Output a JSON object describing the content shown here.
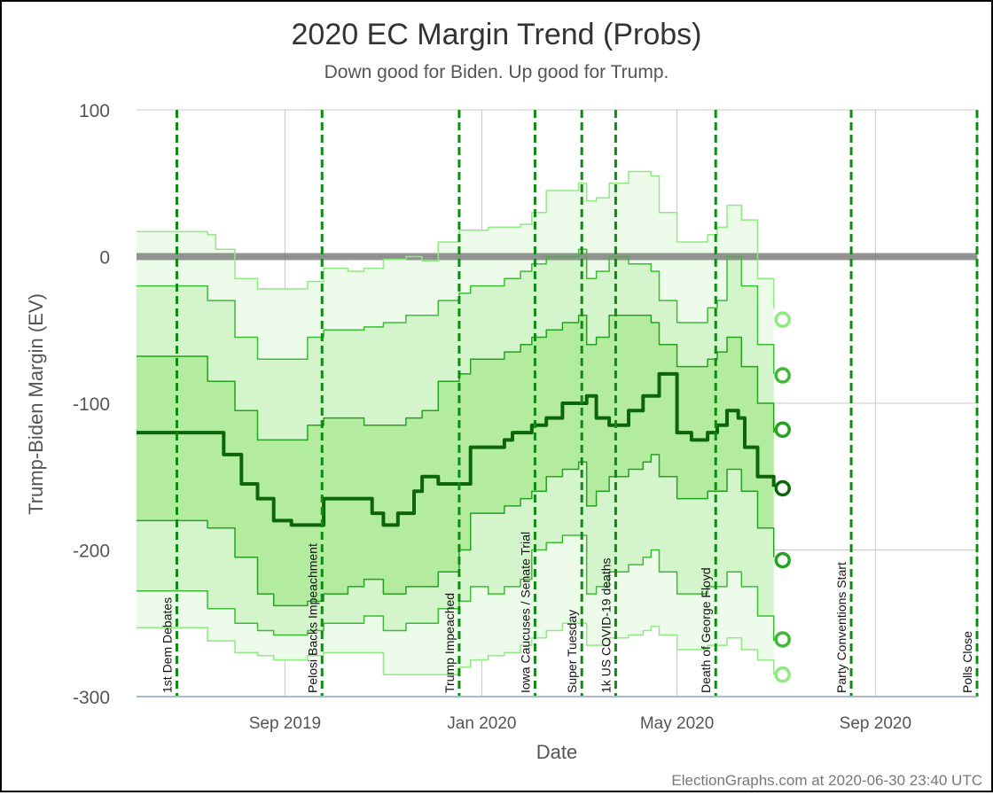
{
  "chart_data": {
    "type": "area",
    "title": "2020 EC Margin Trend (Probs)",
    "subtitle": "Down good for Biden. Up good for Trump.",
    "xlabel": "Date",
    "ylabel": "Trump-Biden Margin (EV)",
    "footer": "ElectionGraphs.com at 2020-06-30 23:40 UTC",
    "ylim": [
      -300,
      100
    ],
    "y_ticks": [
      {
        "value": 100,
        "label": "100"
      },
      {
        "value": 0,
        "label": "0"
      },
      {
        "value": -100,
        "label": "-100"
      },
      {
        "value": -200,
        "label": "-200"
      },
      {
        "value": -300,
        "label": "-300"
      }
    ],
    "xlim": [
      "2019-06-01",
      "2020-11-03"
    ],
    "x_ticks": [
      {
        "date": "2019-09-01",
        "label": "Sep 2019"
      },
      {
        "date": "2020-01-01",
        "label": "Jan 2020"
      },
      {
        "date": "2020-05-01",
        "label": "May 2020"
      },
      {
        "date": "2020-09-01",
        "label": "Sep 2020"
      }
    ],
    "grid": true,
    "zero_line": 0,
    "colors": {
      "band_outer": "#edfbea",
      "band_mid": "#d4f5cc",
      "band_inner": "#b3ec9e",
      "line_outer": "#90ea82",
      "line_mid": "#3dbb35",
      "line_inner": "#25a21f",
      "median": "#0c6608",
      "event_line": "#0f8a14",
      "zero_line": "#808080",
      "grid": "#c8c8c8"
    },
    "events": [
      {
        "date": "2019-06-26",
        "label": "1st Dem Debates"
      },
      {
        "date": "2019-09-24",
        "label": "Pelosi Backs Impeachment"
      },
      {
        "date": "2019-12-18",
        "label": "Trump Impeached"
      },
      {
        "date": "2020-02-03",
        "label": "Iowa Caucuses / Senate Trial"
      },
      {
        "date": "2020-03-03",
        "label": "Super Tuesday"
      },
      {
        "date": "2020-03-24",
        "label": "1k US COVID-19 deaths"
      },
      {
        "date": "2020-05-25",
        "label": "Death of George Floyd"
      },
      {
        "date": "2020-08-17",
        "label": "Party Conventions Start"
      },
      {
        "date": "2020-11-03",
        "label": "Polls Close"
      }
    ],
    "series": [
      {
        "key": "upper_outer",
        "x": [
          "2019-06-01",
          "2019-06-26",
          "2019-07-15",
          "2019-07-20",
          "2019-08-01",
          "2019-08-15",
          "2019-08-25",
          "2019-09-15",
          "2019-09-25",
          "2019-10-10",
          "2019-10-20",
          "2019-11-01",
          "2019-11-15",
          "2019-11-25",
          "2019-12-05",
          "2019-12-18",
          "2019-12-25",
          "2020-01-05",
          "2020-01-15",
          "2020-01-25",
          "2020-02-01",
          "2020-02-10",
          "2020-02-20",
          "2020-03-01",
          "2020-03-06",
          "2020-03-12",
          "2020-03-20",
          "2020-04-01",
          "2020-04-10",
          "2020-04-15",
          "2020-04-20",
          "2020-05-01",
          "2020-05-10",
          "2020-05-20",
          "2020-05-26",
          "2020-06-01",
          "2020-06-10",
          "2020-06-20",
          "2020-06-30"
        ],
        "values": [
          17,
          17,
          15,
          5,
          -15,
          -22,
          -22,
          -17,
          -8,
          -10,
          -8,
          -2,
          0,
          -3,
          10,
          18,
          18,
          20,
          20,
          22,
          30,
          45,
          45,
          50,
          38,
          40,
          50,
          58,
          58,
          55,
          30,
          10,
          10,
          15,
          20,
          35,
          25,
          -15,
          -35
        ]
      },
      {
        "key": "upper_mid",
        "x": [
          "2019-06-01",
          "2019-06-26",
          "2019-07-15",
          "2019-08-01",
          "2019-08-15",
          "2019-08-25",
          "2019-09-15",
          "2019-09-25",
          "2019-10-10",
          "2019-10-20",
          "2019-11-01",
          "2019-11-15",
          "2019-11-25",
          "2019-12-05",
          "2019-12-18",
          "2019-12-25",
          "2020-01-05",
          "2020-01-15",
          "2020-01-25",
          "2020-02-01",
          "2020-02-10",
          "2020-02-20",
          "2020-03-01",
          "2020-03-06",
          "2020-03-12",
          "2020-03-20",
          "2020-04-01",
          "2020-04-10",
          "2020-04-15",
          "2020-04-20",
          "2020-05-01",
          "2020-05-10",
          "2020-05-20",
          "2020-05-26",
          "2020-06-01",
          "2020-06-10",
          "2020-06-20",
          "2020-06-30"
        ],
        "values": [
          -20,
          -20,
          -30,
          -55,
          -70,
          -70,
          -55,
          -50,
          -50,
          -48,
          -45,
          -40,
          -40,
          -30,
          -25,
          -20,
          -20,
          -15,
          -10,
          -5,
          0,
          0,
          5,
          -15,
          -10,
          0,
          -5,
          -5,
          -10,
          -30,
          -45,
          -45,
          -35,
          -30,
          0,
          -20,
          -60,
          -80
        ]
      },
      {
        "key": "upper_inner",
        "x": [
          "2019-06-01",
          "2019-06-26",
          "2019-07-15",
          "2019-08-01",
          "2019-08-15",
          "2019-08-25",
          "2019-09-15",
          "2019-09-25",
          "2019-10-10",
          "2019-10-20",
          "2019-11-01",
          "2019-11-15",
          "2019-11-25",
          "2019-12-05",
          "2019-12-18",
          "2019-12-25",
          "2020-01-05",
          "2020-01-15",
          "2020-01-25",
          "2020-02-01",
          "2020-02-10",
          "2020-02-20",
          "2020-03-01",
          "2020-03-06",
          "2020-03-12",
          "2020-03-20",
          "2020-04-01",
          "2020-04-10",
          "2020-04-15",
          "2020-04-20",
          "2020-05-01",
          "2020-05-10",
          "2020-05-20",
          "2020-05-26",
          "2020-06-01",
          "2020-06-10",
          "2020-06-20",
          "2020-06-30"
        ],
        "values": [
          -68,
          -68,
          -85,
          -105,
          -125,
          -125,
          -115,
          -110,
          -110,
          -115,
          -115,
          -110,
          -105,
          -85,
          -80,
          -70,
          -70,
          -65,
          -60,
          -55,
          -50,
          -45,
          -40,
          -60,
          -55,
          -40,
          -40,
          -40,
          -45,
          -60,
          -75,
          -75,
          -70,
          -65,
          -55,
          -75,
          -100,
          -120
        ]
      },
      {
        "key": "median",
        "x": [
          "2019-06-01",
          "2019-06-26",
          "2019-07-15",
          "2019-07-25",
          "2019-08-05",
          "2019-08-15",
          "2019-08-25",
          "2019-09-05",
          "2019-09-15",
          "2019-09-25",
          "2019-10-10",
          "2019-10-18",
          "2019-10-25",
          "2019-11-01",
          "2019-11-10",
          "2019-11-20",
          "2019-11-25",
          "2019-12-05",
          "2019-12-15",
          "2019-12-25",
          "2020-01-05",
          "2020-01-15",
          "2020-01-20",
          "2020-02-01",
          "2020-02-10",
          "2020-02-20",
          "2020-03-01",
          "2020-03-06",
          "2020-03-12",
          "2020-03-20",
          "2020-04-01",
          "2020-04-10",
          "2020-04-15",
          "2020-04-20",
          "2020-05-01",
          "2020-05-10",
          "2020-05-15",
          "2020-05-20",
          "2020-05-26",
          "2020-06-01",
          "2020-06-08",
          "2020-06-12",
          "2020-06-20",
          "2020-06-30"
        ],
        "values": [
          -120,
          -120,
          -120,
          -135,
          -155,
          -165,
          -180,
          -183,
          -183,
          -165,
          -165,
          -165,
          -175,
          -183,
          -175,
          -160,
          -150,
          -155,
          -155,
          -130,
          -130,
          -125,
          -120,
          -115,
          -110,
          -100,
          -100,
          -95,
          -110,
          -115,
          -105,
          -95,
          -95,
          -80,
          -120,
          -125,
          -125,
          -120,
          -115,
          -105,
          -110,
          -130,
          -150,
          -157
        ]
      },
      {
        "key": "lower_inner",
        "x": [
          "2019-06-01",
          "2019-06-26",
          "2019-07-15",
          "2019-08-01",
          "2019-08-15",
          "2019-08-25",
          "2019-09-15",
          "2019-09-25",
          "2019-10-10",
          "2019-10-20",
          "2019-11-01",
          "2019-11-15",
          "2019-11-25",
          "2019-12-05",
          "2019-12-18",
          "2019-12-25",
          "2020-01-05",
          "2020-01-15",
          "2020-01-25",
          "2020-02-01",
          "2020-02-10",
          "2020-02-20",
          "2020-03-01",
          "2020-03-06",
          "2020-03-12",
          "2020-03-20",
          "2020-04-01",
          "2020-04-10",
          "2020-04-15",
          "2020-04-20",
          "2020-05-01",
          "2020-05-10",
          "2020-05-20",
          "2020-05-26",
          "2020-06-01",
          "2020-06-10",
          "2020-06-20",
          "2020-06-30"
        ],
        "values": [
          -180,
          -180,
          -185,
          -205,
          -230,
          -238,
          -235,
          -230,
          -225,
          -220,
          -230,
          -225,
          -225,
          -215,
          -200,
          -175,
          -175,
          -170,
          -165,
          -160,
          -150,
          -145,
          -140,
          -170,
          -160,
          -150,
          -145,
          -140,
          -135,
          -150,
          -165,
          -165,
          -160,
          -160,
          -145,
          -160,
          -185,
          -205
        ]
      },
      {
        "key": "lower_mid",
        "x": [
          "2019-06-01",
          "2019-06-26",
          "2019-07-15",
          "2019-08-01",
          "2019-08-15",
          "2019-08-25",
          "2019-09-15",
          "2019-09-25",
          "2019-10-10",
          "2019-10-20",
          "2019-11-01",
          "2019-11-15",
          "2019-11-25",
          "2019-12-05",
          "2019-12-18",
          "2019-12-25",
          "2020-01-05",
          "2020-01-15",
          "2020-01-25",
          "2020-02-01",
          "2020-02-10",
          "2020-02-20",
          "2020-03-01",
          "2020-03-06",
          "2020-03-12",
          "2020-03-20",
          "2020-04-01",
          "2020-04-10",
          "2020-04-15",
          "2020-04-20",
          "2020-05-01",
          "2020-05-10",
          "2020-05-20",
          "2020-05-26",
          "2020-06-01",
          "2020-06-10",
          "2020-06-20",
          "2020-06-30"
        ],
        "values": [
          -228,
          -228,
          -240,
          -250,
          -255,
          -258,
          -255,
          -250,
          -250,
          -245,
          -255,
          -250,
          -250,
          -240,
          -235,
          -225,
          -230,
          -225,
          -220,
          -200,
          -195,
          -190,
          -190,
          -230,
          -225,
          -215,
          -210,
          -205,
          -200,
          -215,
          -230,
          -230,
          -225,
          -225,
          -215,
          -225,
          -245,
          -262
        ]
      },
      {
        "key": "lower_outer",
        "x": [
          "2019-06-01",
          "2019-06-26",
          "2019-07-15",
          "2019-08-01",
          "2019-08-15",
          "2019-08-25",
          "2019-09-15",
          "2019-09-25",
          "2019-10-10",
          "2019-10-20",
          "2019-11-01",
          "2019-11-15",
          "2019-11-25",
          "2019-12-05",
          "2019-12-18",
          "2019-12-25",
          "2020-01-05",
          "2020-01-15",
          "2020-01-25",
          "2020-02-01",
          "2020-02-10",
          "2020-02-20",
          "2020-03-01",
          "2020-03-06",
          "2020-03-12",
          "2020-03-20",
          "2020-04-01",
          "2020-04-10",
          "2020-04-15",
          "2020-04-20",
          "2020-05-01",
          "2020-05-10",
          "2020-05-20",
          "2020-05-26",
          "2020-06-01",
          "2020-06-10",
          "2020-06-20",
          "2020-06-30"
        ],
        "values": [
          -253,
          -253,
          -262,
          -270,
          -272,
          -275,
          -272,
          -270,
          -270,
          -270,
          -285,
          -285,
          -285,
          -285,
          -280,
          -275,
          -272,
          -270,
          -265,
          -260,
          -255,
          -250,
          -250,
          -265,
          -265,
          -260,
          -258,
          -255,
          -252,
          -258,
          -268,
          -268,
          -265,
          -265,
          -260,
          -268,
          -275,
          -285
        ]
      }
    ],
    "end_markers": [
      {
        "series": "upper_outer",
        "value": -43,
        "color": "#90ea82"
      },
      {
        "series": "upper_mid",
        "value": -81,
        "color": "#3dbb35"
      },
      {
        "series": "upper_inner",
        "value": -118,
        "color": "#25a21f"
      },
      {
        "series": "median",
        "value": -158,
        "color": "#0c6608"
      },
      {
        "series": "lower_inner",
        "value": -207,
        "color": "#25a21f"
      },
      {
        "series": "lower_mid",
        "value": -261,
        "color": "#3dbb35"
      },
      {
        "series": "lower_outer",
        "value": -285,
        "color": "#90ea82"
      }
    ]
  }
}
